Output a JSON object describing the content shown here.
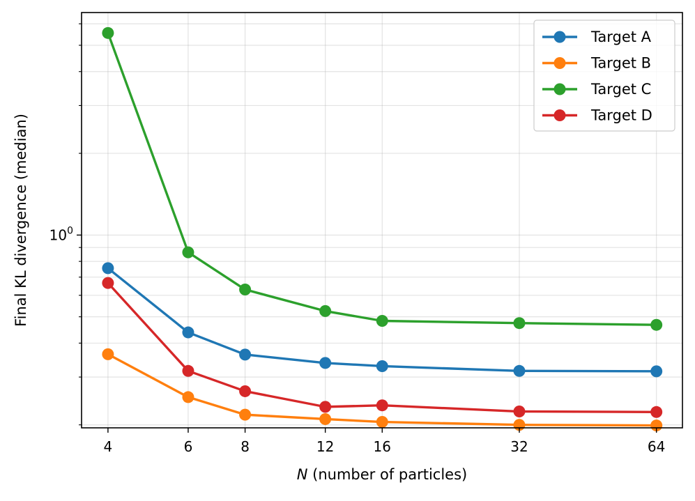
{
  "chart_data": {
    "type": "line",
    "title": "",
    "xlabel": {
      "italic": "N",
      "rest": " (number of particles)"
    },
    "ylabel": "Final KL divergence (median)",
    "x_scale": "log2",
    "y_scale": "log10",
    "xlim": [
      3.5,
      73
    ],
    "ylim": [
      0.195,
      6.6
    ],
    "grid": true,
    "legend_position": "top-right",
    "x": [
      4,
      6,
      8,
      12,
      16,
      32,
      64
    ],
    "x_tick_labels": [
      "4",
      "6",
      "8",
      "12",
      "16",
      "32",
      "64"
    ],
    "y_tick_label": {
      "base": "10",
      "exp": "0"
    },
    "series": [
      {
        "name": "Target A",
        "color": "#1f77b4",
        "values": [
          0.755,
          0.438,
          0.363,
          0.338,
          0.329,
          0.316,
          0.315
        ]
      },
      {
        "name": "Target B",
        "color": "#ff7f0e",
        "values": [
          0.364,
          0.253,
          0.218,
          0.21,
          0.205,
          0.2,
          0.199
        ]
      },
      {
        "name": "Target C",
        "color": "#2ca02c",
        "values": [
          5.55,
          0.864,
          0.63,
          0.525,
          0.483,
          0.474,
          0.467
        ]
      },
      {
        "name": "Target D",
        "color": "#d62728",
        "values": [
          0.666,
          0.316,
          0.266,
          0.233,
          0.236,
          0.224,
          0.223
        ]
      }
    ]
  }
}
